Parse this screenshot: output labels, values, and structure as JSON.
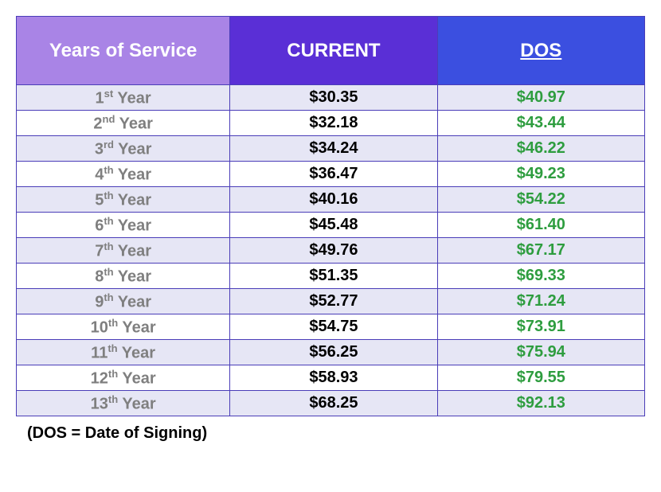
{
  "table": {
    "header_bg": [
      "#a984e6",
      "#5a2fd6",
      "#3b4fe0"
    ],
    "row_bg_alt": [
      "#e6e6f5",
      "#ffffff"
    ],
    "columns": [
      "Years of Service",
      "CURRENT",
      "DOS"
    ],
    "dos_underline": true,
    "ordinals": [
      "st",
      "nd",
      "rd",
      "th",
      "th",
      "th",
      "th",
      "th",
      "th",
      "th",
      "th",
      "th",
      "th"
    ],
    "year_word": "Year",
    "rows": [
      {
        "n": 1,
        "current": "$30.35",
        "dos": "$40.97"
      },
      {
        "n": 2,
        "current": "$32.18",
        "dos": "$43.44"
      },
      {
        "n": 3,
        "current": "$34.24",
        "dos": "$46.22"
      },
      {
        "n": 4,
        "current": "$36.47",
        "dos": "$49.23"
      },
      {
        "n": 5,
        "current": "$40.16",
        "dos": "$54.22"
      },
      {
        "n": 6,
        "current": "$45.48",
        "dos": "$61.40"
      },
      {
        "n": 7,
        "current": "$49.76",
        "dos": "$67.17"
      },
      {
        "n": 8,
        "current": "$51.35",
        "dos": "$69.33"
      },
      {
        "n": 9,
        "current": "$52.77",
        "dos": "$71.24"
      },
      {
        "n": 10,
        "current": "$54.75",
        "dos": "$73.91"
      },
      {
        "n": 11,
        "current": "$56.25",
        "dos": "$75.94"
      },
      {
        "n": 12,
        "current": "$58.93",
        "dos": "$79.55"
      },
      {
        "n": 13,
        "current": "$68.25",
        "dos": "$92.13"
      }
    ]
  },
  "footnote": "(DOS = Date of Signing)"
}
